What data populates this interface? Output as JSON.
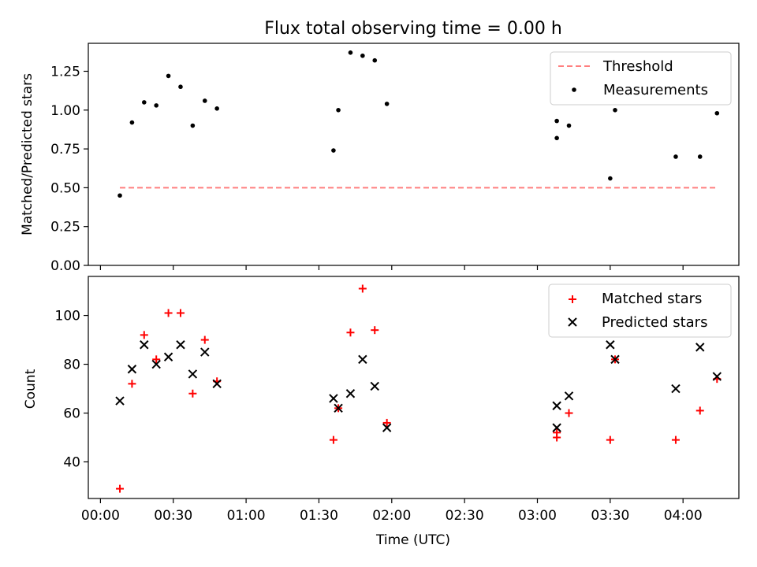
{
  "title": "Flux total observing time = 0.00 h",
  "chart_data": [
    {
      "type": "scatter",
      "ylabel": "Matched/Predicted stars",
      "ylim": [
        0,
        1.43
      ],
      "xlim": [
        -5,
        263
      ],
      "x_unit": "minutes since 00:00 UTC",
      "yticks": [
        "0.00",
        "0.25",
        "0.50",
        "0.75",
        "1.00",
        "1.25"
      ],
      "ytick_values": [
        0,
        0.25,
        0.5,
        0.75,
        1.0,
        1.25
      ],
      "legend_position": "top-right",
      "threshold": {
        "name": "Threshold",
        "y": 0.5,
        "x_start": 8,
        "x_end": 254,
        "color": "#ff7f7f",
        "style": "dashed"
      },
      "series": [
        {
          "name": "Measurements",
          "marker": "dot",
          "color": "#000000",
          "points": [
            [
              8,
              0.45
            ],
            [
              13,
              0.92
            ],
            [
              18,
              1.05
            ],
            [
              23,
              1.03
            ],
            [
              28,
              1.22
            ],
            [
              33,
              1.15
            ],
            [
              38,
              0.9
            ],
            [
              43,
              1.06
            ],
            [
              48,
              1.01
            ],
            [
              96,
              0.74
            ],
            [
              98,
              1.0
            ],
            [
              103,
              1.37
            ],
            [
              108,
              1.35
            ],
            [
              113,
              1.32
            ],
            [
              118,
              1.04
            ],
            [
              188,
              0.93
            ],
            [
              188,
              0.82
            ],
            [
              193,
              0.9
            ],
            [
              210,
              0.56
            ],
            [
              212,
              1.0
            ],
            [
              237,
              0.7
            ],
            [
              247,
              0.7
            ],
            [
              254,
              0.98
            ]
          ]
        }
      ]
    },
    {
      "type": "scatter",
      "xlabel": "Time (UTC)",
      "ylabel": "Count",
      "ylim": [
        25,
        116
      ],
      "xlim": [
        -5,
        263
      ],
      "yticks": [
        "40",
        "60",
        "80",
        "100"
      ],
      "ytick_values": [
        40,
        60,
        80,
        100
      ],
      "xticks": [
        "00:00",
        "00:30",
        "01:00",
        "01:30",
        "02:00",
        "02:30",
        "03:00",
        "03:30",
        "04:00"
      ],
      "xtick_values": [
        0,
        30,
        60,
        90,
        120,
        150,
        180,
        210,
        240
      ],
      "legend_position": "top-right",
      "series": [
        {
          "name": "Matched stars",
          "marker": "plus",
          "color": "#ff0000",
          "points": [
            [
              8,
              29
            ],
            [
              13,
              72
            ],
            [
              18,
              92
            ],
            [
              23,
              82
            ],
            [
              28,
              101
            ],
            [
              33,
              101
            ],
            [
              38,
              68
            ],
            [
              43,
              90
            ],
            [
              48,
              73
            ],
            [
              96,
              49
            ],
            [
              98,
              62
            ],
            [
              103,
              93
            ],
            [
              108,
              111
            ],
            [
              113,
              94
            ],
            [
              118,
              56
            ],
            [
              188,
              50
            ],
            [
              188,
              52
            ],
            [
              193,
              60
            ],
            [
              210,
              49
            ],
            [
              212,
              82
            ],
            [
              237,
              49
            ],
            [
              247,
              61
            ],
            [
              254,
              74
            ]
          ]
        },
        {
          "name": "Predicted stars",
          "marker": "x",
          "color": "#000000",
          "points": [
            [
              8,
              65
            ],
            [
              13,
              78
            ],
            [
              18,
              88
            ],
            [
              23,
              80
            ],
            [
              28,
              83
            ],
            [
              33,
              88
            ],
            [
              38,
              76
            ],
            [
              43,
              85
            ],
            [
              48,
              72
            ],
            [
              96,
              66
            ],
            [
              98,
              62
            ],
            [
              103,
              68
            ],
            [
              108,
              82
            ],
            [
              113,
              71
            ],
            [
              118,
              54
            ],
            [
              188,
              63
            ],
            [
              188,
              54
            ],
            [
              193,
              67
            ],
            [
              210,
              88
            ],
            [
              212,
              82
            ],
            [
              237,
              70
            ],
            [
              247,
              87
            ],
            [
              254,
              75
            ]
          ]
        }
      ]
    }
  ]
}
